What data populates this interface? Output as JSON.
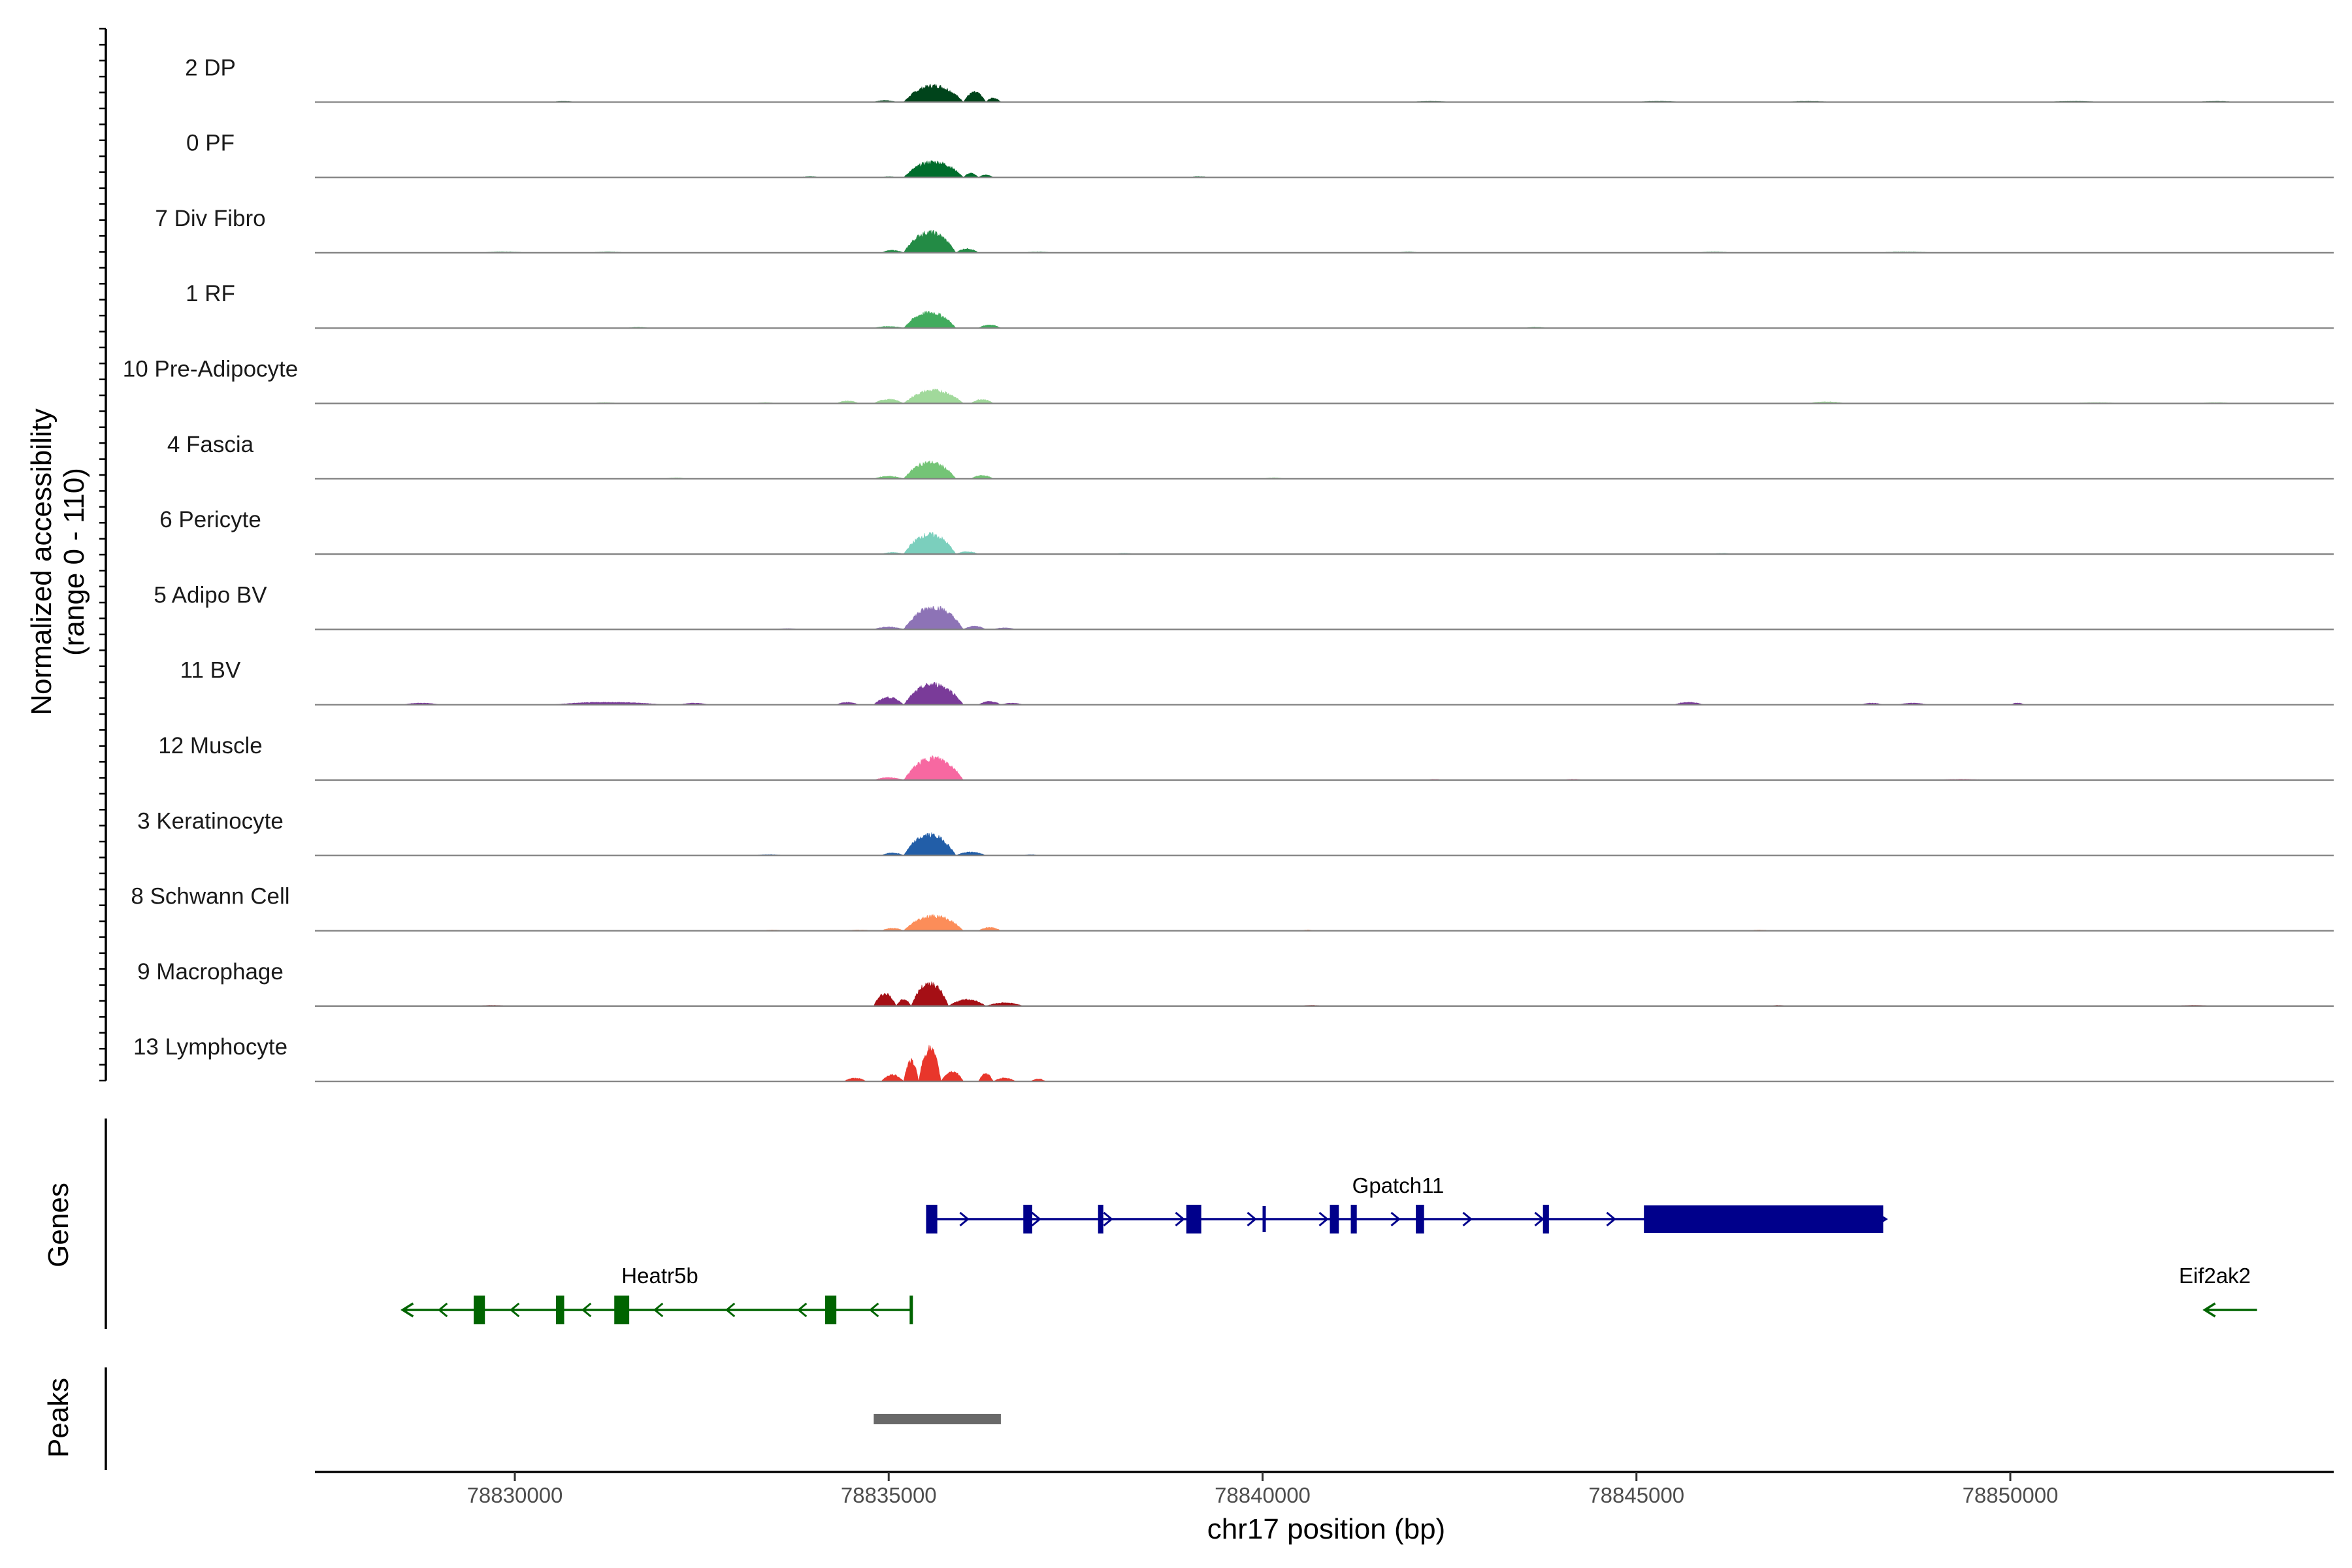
{
  "chart_data": {
    "type": "area",
    "chromosome": "chr17",
    "region": {
      "start": 78827300,
      "end": 78854500
    },
    "y_axis_title": "Normalized accessibility",
    "y_axis_subtitle": "(range 0 - 110)",
    "y_range": [
      0,
      110
    ],
    "x_axis_title": "chr17 position (bp)",
    "x_ticks": [
      78830000,
      78835000,
      78840000,
      78845000,
      78850000
    ],
    "x_tick_labels": [
      "78830000",
      "78835000",
      "78840000",
      "78845000",
      "78850000"
    ],
    "genes_panel_label": "Genes",
    "peaks_panel_label": "Peaks",
    "tracks": [
      {
        "name": "2 DP",
        "color": "#00441b",
        "peak_height": 20,
        "bumps": [
          [
            78834800,
            78835100,
            2
          ],
          [
            78835200,
            78836000,
            20
          ],
          [
            78836000,
            78836300,
            12
          ],
          [
            78836300,
            78836500,
            5
          ],
          [
            78830500,
            78830800,
            1
          ],
          [
            78842000,
            78842500,
            1
          ],
          [
            78845000,
            78845600,
            1
          ],
          [
            78847000,
            78847600,
            1
          ],
          [
            78850500,
            78851200,
            1
          ],
          [
            78852500,
            78853000,
            1
          ]
        ]
      },
      {
        "name": "0 PF",
        "color": "#006d2c",
        "peak_height": 19,
        "bumps": [
          [
            78834900,
            78835100,
            1
          ],
          [
            78835200,
            78836000,
            19
          ],
          [
            78836000,
            78836200,
            5
          ],
          [
            78836200,
            78836400,
            3
          ],
          [
            78833800,
            78834100,
            1
          ],
          [
            78839000,
            78839300,
            1
          ]
        ]
      },
      {
        "name": "7 Div Fibro",
        "color": "#238b45",
        "peak_height": 25,
        "bumps": [
          [
            78834900,
            78835200,
            3
          ],
          [
            78835200,
            78835900,
            25
          ],
          [
            78835900,
            78836200,
            5
          ],
          [
            78829500,
            78830200,
            1
          ],
          [
            78831000,
            78831500,
            1
          ],
          [
            78836800,
            78837200,
            1
          ],
          [
            78841800,
            78842100,
            1
          ],
          [
            78845800,
            78846300,
            1
          ],
          [
            78848200,
            78849000,
            1
          ]
        ]
      },
      {
        "name": "1 RF",
        "color": "#41ab5d",
        "peak_height": 19,
        "bumps": [
          [
            78834800,
            78835200,
            2
          ],
          [
            78835200,
            78835900,
            19
          ],
          [
            78836200,
            78836500,
            4
          ],
          [
            78831500,
            78831800,
            1
          ],
          [
            78843500,
            78843800,
            1
          ]
        ]
      },
      {
        "name": "10 Pre-Adipocyte",
        "color": "#a1d99b",
        "peak_height": 16,
        "bumps": [
          [
            78834300,
            78834600,
            3
          ],
          [
            78834800,
            78835200,
            5
          ],
          [
            78835200,
            78836000,
            16
          ],
          [
            78836100,
            78836400,
            5
          ],
          [
            78831000,
            78831400,
            1
          ],
          [
            78833200,
            78833500,
            1
          ],
          [
            78847300,
            78847800,
            2
          ],
          [
            78850800,
            78851500,
            1
          ],
          [
            78852500,
            78853000,
            1
          ]
        ]
      },
      {
        "name": "4 Fascia",
        "color": "#74c476",
        "peak_height": 20,
        "bumps": [
          [
            78834800,
            78835200,
            3
          ],
          [
            78835200,
            78835900,
            20
          ],
          [
            78836100,
            78836400,
            4
          ],
          [
            78832000,
            78832300,
            1
          ],
          [
            78840000,
            78840300,
            1
          ]
        ]
      },
      {
        "name": "6 Pericyte",
        "color": "#7bcfbd",
        "peak_height": 24,
        "bumps": [
          [
            78834900,
            78835200,
            2
          ],
          [
            78835200,
            78835900,
            24
          ],
          [
            78835900,
            78836200,
            3
          ],
          [
            78838000,
            78838300,
            1
          ],
          [
            78846000,
            78846300,
            1
          ]
        ]
      },
      {
        "name": "5 Adipo BV",
        "color": "#8d73b6",
        "peak_height": 27,
        "bumps": [
          [
            78834800,
            78835200,
            3
          ],
          [
            78835200,
            78836000,
            27
          ],
          [
            78836000,
            78836300,
            4
          ],
          [
            78836400,
            78836700,
            2
          ],
          [
            78833500,
            78833800,
            1
          ]
        ]
      },
      {
        "name": "11 BV",
        "color": "#7a3b99",
        "peak_height": 25,
        "bumps": [
          [
            78834300,
            78834600,
            3
          ],
          [
            78834800,
            78835200,
            9
          ],
          [
            78835200,
            78836000,
            25
          ],
          [
            78836200,
            78836500,
            4
          ],
          [
            78836500,
            78836800,
            2
          ],
          [
            78828500,
            78829000,
            2
          ],
          [
            78830500,
            78832000,
            3
          ],
          [
            78832200,
            78832600,
            2
          ],
          [
            78845500,
            78845900,
            3
          ],
          [
            78848000,
            78848300,
            2
          ],
          [
            78848500,
            78848900,
            2
          ],
          [
            78850000,
            78850200,
            2
          ]
        ]
      },
      {
        "name": "12 Muscle",
        "color": "#f768a1",
        "peak_height": 27,
        "bumps": [
          [
            78834800,
            78835200,
            3
          ],
          [
            78835200,
            78836000,
            27
          ],
          [
            78842200,
            78842400,
            1
          ],
          [
            78844000,
            78844300,
            1
          ],
          [
            78849000,
            78849700,
            1
          ]
        ]
      },
      {
        "name": "3 Keratinocyte",
        "color": "#225ea8",
        "peak_height": 25,
        "bumps": [
          [
            78834900,
            78835200,
            3
          ],
          [
            78835200,
            78835900,
            25
          ],
          [
            78835900,
            78836300,
            4
          ],
          [
            78833200,
            78833600,
            1
          ],
          [
            78836800,
            78837000,
            1
          ]
        ]
      },
      {
        "name": "8 Schwann Cell",
        "color": "#fc8d59",
        "peak_height": 18,
        "bumps": [
          [
            78834400,
            78834800,
            1
          ],
          [
            78834900,
            78835200,
            3
          ],
          [
            78835200,
            78836000,
            18
          ],
          [
            78836200,
            78836500,
            4
          ],
          [
            78833300,
            78833600,
            1
          ],
          [
            78840500,
            78840700,
            1
          ],
          [
            78846500,
            78846800,
            1
          ]
        ]
      },
      {
        "name": "9 Macrophage",
        "color": "#a50f15",
        "peak_height": 28,
        "bumps": [
          [
            78834800,
            78835100,
            15
          ],
          [
            78835100,
            78835300,
            8
          ],
          [
            78835300,
            78835800,
            28
          ],
          [
            78835800,
            78836300,
            8
          ],
          [
            78836300,
            78836800,
            4
          ],
          [
            78829500,
            78829900,
            1
          ],
          [
            78840500,
            78840800,
            1
          ],
          [
            78846800,
            78847000,
            1
          ],
          [
            78852200,
            78852700,
            1
          ]
        ]
      },
      {
        "name": "13 Lymphocyte",
        "color": "#e8362b",
        "peak_height": 40,
        "bumps": [
          [
            78834400,
            78834700,
            4
          ],
          [
            78834900,
            78835200,
            8
          ],
          [
            78835200,
            78835400,
            25
          ],
          [
            78835400,
            78835700,
            40
          ],
          [
            78835700,
            78836000,
            12
          ],
          [
            78836200,
            78836400,
            9
          ],
          [
            78836400,
            78836700,
            4
          ],
          [
            78836900,
            78837100,
            3
          ]
        ]
      }
    ],
    "genes": [
      {
        "name": "Gpatch11",
        "strand": "+",
        "color": "#00008b",
        "start": 78835500,
        "end": 78848300,
        "exons": [
          [
            78835500,
            78835650,
            "tall"
          ],
          [
            78836800,
            78836920,
            "tall"
          ],
          [
            78837800,
            78837870,
            "tall"
          ],
          [
            78838980,
            78839180,
            "tall"
          ],
          [
            78840000,
            78840040,
            "thin"
          ],
          [
            78840900,
            78841020,
            "tall"
          ],
          [
            78841180,
            78841260,
            "tall"
          ],
          [
            78842050,
            78842160,
            "tall"
          ],
          [
            78843750,
            78843830,
            "tall"
          ],
          [
            78845100,
            78848300,
            "utr"
          ]
        ]
      },
      {
        "name": "Heatr5b",
        "strand": "-",
        "color": "#006400",
        "start": 78828500,
        "end": 78835300,
        "exons": [
          [
            78829450,
            78829600,
            "tall"
          ],
          [
            78830550,
            78830660,
            "tall"
          ],
          [
            78831330,
            78831530,
            "tall"
          ],
          [
            78834150,
            78834300,
            "tall"
          ],
          [
            78835280,
            78835320,
            "tall"
          ]
        ]
      },
      {
        "name": "Eif2ak2",
        "strand": "-",
        "color": "#006400",
        "start": 78852600,
        "end": 78853300,
        "exons": []
      }
    ],
    "peaks": [
      {
        "start": 78834800,
        "end": 78836500,
        "color": "#696969"
      }
    ]
  }
}
